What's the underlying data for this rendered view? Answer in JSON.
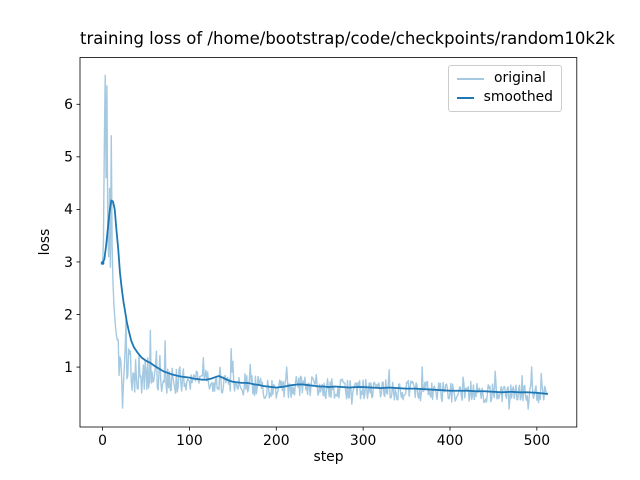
{
  "chart_data": {
    "type": "line",
    "title": "training loss of /home/bootstrap/code/checkpoints/random10k2k",
    "xlabel": "step",
    "ylabel": "loss",
    "xlim": [
      -26,
      546
    ],
    "ylim": [
      -0.14,
      6.89
    ],
    "xticks": [
      0,
      100,
      200,
      300,
      400,
      500
    ],
    "yticks": [
      1,
      2,
      3,
      4,
      5,
      6
    ],
    "grid": false,
    "axis_color": "#000000",
    "legend": {
      "position": "upper right",
      "entries": [
        {
          "label": "original",
          "color": "#a5c9e1",
          "line_width": 2
        },
        {
          "label": "smoothed",
          "color": "#1f77b4",
          "line_width": 2
        }
      ]
    },
    "steps": 512,
    "series": [
      {
        "name": "original",
        "color": "#a5c9e1",
        "width": 1.4,
        "head_values": [
          2.95,
          3.4,
          5.2,
          6.55,
          4.6,
          6.35,
          3.6,
          3.1,
          4.4,
          2.9,
          5.4,
          3.3,
          2.6,
          2.2,
          1.95,
          1.75,
          1.6
        ],
        "center_keypoints": [
          [
            17,
            1.5
          ],
          [
            20,
            1.25
          ],
          [
            24,
            1.1
          ],
          [
            28,
            1.0
          ],
          [
            34,
            0.95
          ],
          [
            40,
            0.9
          ],
          [
            50,
            0.85
          ],
          [
            60,
            0.82
          ],
          [
            70,
            0.79
          ],
          [
            80,
            0.77
          ],
          [
            90,
            0.75
          ],
          [
            100,
            0.74
          ],
          [
            110,
            0.72
          ],
          [
            120,
            0.72
          ],
          [
            130,
            0.74
          ],
          [
            140,
            0.72
          ],
          [
            150,
            0.7
          ],
          [
            160,
            0.68
          ],
          [
            170,
            0.66
          ],
          [
            180,
            0.63
          ],
          [
            190,
            0.6
          ],
          [
            200,
            0.58
          ],
          [
            210,
            0.6
          ],
          [
            220,
            0.63
          ],
          [
            230,
            0.63
          ],
          [
            240,
            0.62
          ],
          [
            250,
            0.6
          ],
          [
            260,
            0.59
          ],
          [
            280,
            0.58
          ],
          [
            300,
            0.58
          ],
          [
            320,
            0.57
          ],
          [
            340,
            0.56
          ],
          [
            360,
            0.55
          ],
          [
            380,
            0.54
          ],
          [
            400,
            0.52
          ],
          [
            420,
            0.52
          ],
          [
            440,
            0.51
          ],
          [
            460,
            0.5
          ],
          [
            480,
            0.5
          ],
          [
            500,
            0.49
          ],
          [
            512,
            0.5
          ]
        ],
        "noise": {
          "seed": 11,
          "amp_keypoints": [
            [
              16,
              0.55
            ],
            [
              20,
              0.6
            ],
            [
              28,
              0.55
            ],
            [
              36,
              0.45
            ],
            [
              48,
              0.35
            ],
            [
              60,
              0.3
            ],
            [
              80,
              0.27
            ],
            [
              100,
              0.24
            ],
            [
              140,
              0.22
            ],
            [
              200,
              0.2
            ],
            [
              300,
              0.19
            ],
            [
              512,
              0.18
            ]
          ],
          "spike_prob": 0.06,
          "spike_scale": 2.8,
          "down_prob": 0.03,
          "down_scale": 1.5,
          "min_clamp": 0.2
        },
        "overrides": [
          [
            23,
            0.22
          ],
          [
            55,
            1.7
          ],
          [
            72,
            1.5
          ],
          [
            148,
            1.35
          ],
          [
            212,
            1.0
          ],
          [
            330,
            0.95
          ],
          [
            452,
            0.92
          ],
          [
            505,
            0.88
          ]
        ]
      },
      {
        "name": "smoothed",
        "color": "#1f77b4",
        "width": 1.8,
        "keypoints": [
          [
            0,
            2.98
          ],
          [
            2,
            3.05
          ],
          [
            4,
            3.3
          ],
          [
            6,
            3.62
          ],
          [
            8,
            3.95
          ],
          [
            10,
            4.17
          ],
          [
            12,
            4.15
          ],
          [
            14,
            4.0
          ],
          [
            16,
            3.6
          ],
          [
            18,
            3.25
          ],
          [
            20,
            2.8
          ],
          [
            22,
            2.5
          ],
          [
            24,
            2.25
          ],
          [
            26,
            2.05
          ],
          [
            28,
            1.85
          ],
          [
            30,
            1.7
          ],
          [
            33,
            1.5
          ],
          [
            36,
            1.38
          ],
          [
            40,
            1.28
          ],
          [
            45,
            1.18
          ],
          [
            50,
            1.12
          ],
          [
            55,
            1.08
          ],
          [
            60,
            1.02
          ],
          [
            65,
            0.97
          ],
          [
            70,
            0.92
          ],
          [
            75,
            0.89
          ],
          [
            80,
            0.86
          ],
          [
            85,
            0.84
          ],
          [
            90,
            0.82
          ],
          [
            95,
            0.81
          ],
          [
            100,
            0.8
          ],
          [
            105,
            0.78
          ],
          [
            110,
            0.77
          ],
          [
            115,
            0.76
          ],
          [
            120,
            0.76
          ],
          [
            125,
            0.78
          ],
          [
            130,
            0.81
          ],
          [
            134,
            0.83
          ],
          [
            138,
            0.8
          ],
          [
            142,
            0.77
          ],
          [
            146,
            0.74
          ],
          [
            150,
            0.72
          ],
          [
            155,
            0.71
          ],
          [
            160,
            0.7
          ],
          [
            165,
            0.7
          ],
          [
            170,
            0.69
          ],
          [
            175,
            0.67
          ],
          [
            180,
            0.66
          ],
          [
            185,
            0.64
          ],
          [
            190,
            0.63
          ],
          [
            195,
            0.62
          ],
          [
            200,
            0.61
          ],
          [
            205,
            0.62
          ],
          [
            210,
            0.63
          ],
          [
            215,
            0.65
          ],
          [
            220,
            0.66
          ],
          [
            225,
            0.67
          ],
          [
            230,
            0.67
          ],
          [
            235,
            0.66
          ],
          [
            240,
            0.65
          ],
          [
            245,
            0.64
          ],
          [
            250,
            0.63
          ],
          [
            255,
            0.63
          ],
          [
            260,
            0.62
          ],
          [
            268,
            0.63
          ],
          [
            276,
            0.62
          ],
          [
            284,
            0.61
          ],
          [
            292,
            0.62
          ],
          [
            300,
            0.62
          ],
          [
            310,
            0.61
          ],
          [
            320,
            0.6
          ],
          [
            330,
            0.61
          ],
          [
            340,
            0.6
          ],
          [
            350,
            0.59
          ],
          [
            360,
            0.59
          ],
          [
            370,
            0.58
          ],
          [
            380,
            0.57
          ],
          [
            390,
            0.56
          ],
          [
            400,
            0.55
          ],
          [
            410,
            0.55
          ],
          [
            420,
            0.55
          ],
          [
            430,
            0.54
          ],
          [
            440,
            0.54
          ],
          [
            450,
            0.53
          ],
          [
            460,
            0.52
          ],
          [
            470,
            0.53
          ],
          [
            480,
            0.52
          ],
          [
            490,
            0.52
          ],
          [
            500,
            0.51
          ],
          [
            506,
            0.5
          ],
          [
            512,
            0.49
          ]
        ]
      }
    ]
  }
}
